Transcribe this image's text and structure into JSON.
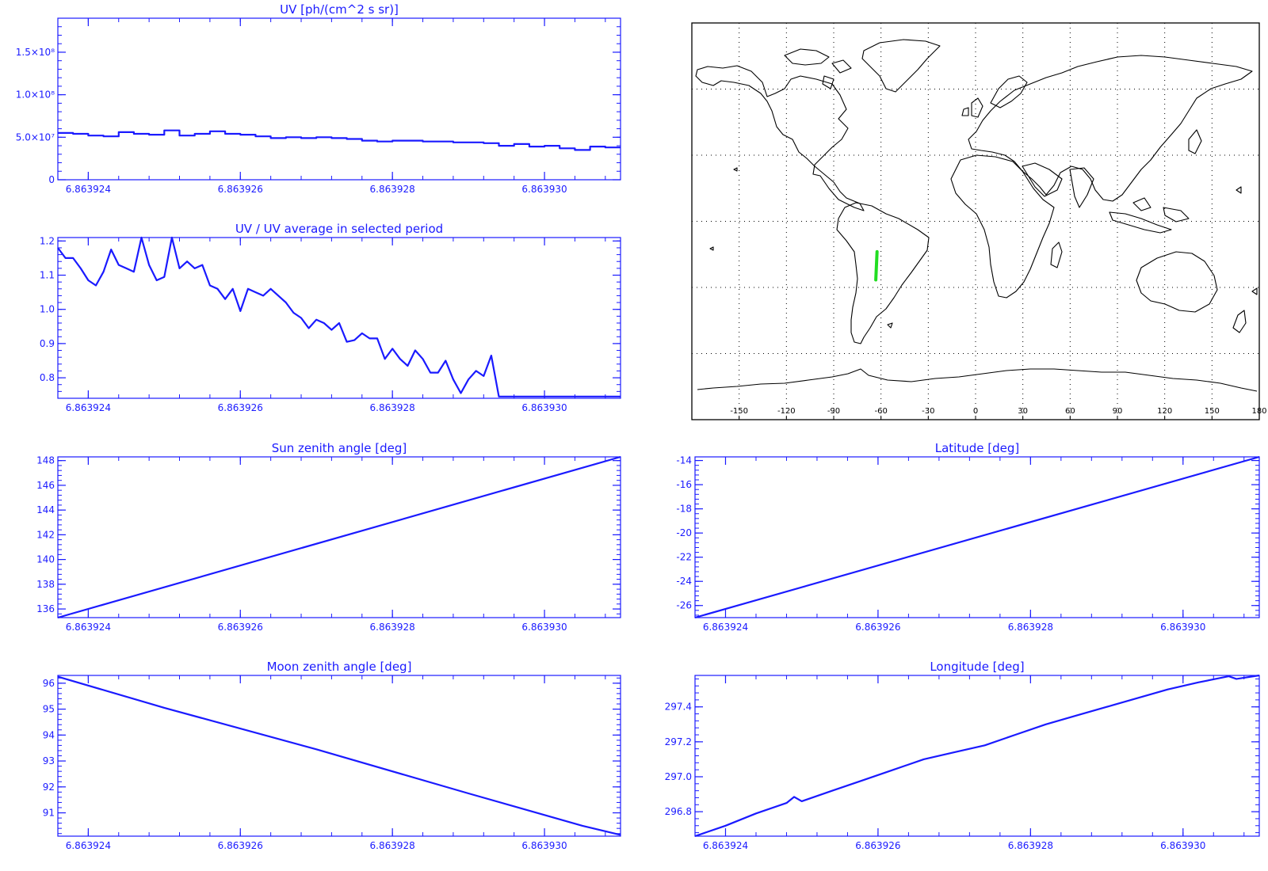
{
  "chart_data": [
    {
      "id": "uv",
      "type": "line",
      "step": true,
      "title": "UV [ph/(cm^2 s sr)]",
      "xlabel": "",
      "ylabel": "",
      "xlim": [
        6.8639236,
        6.863931
      ],
      "ylim": [
        0,
        190000000
      ],
      "xticks": [
        6.863924,
        6.863926,
        6.863928,
        6.86393
      ],
      "xtick_labels": [
        "6.863924",
        "6.863926",
        "6.863928",
        "6.863930"
      ],
      "yticks": [
        0,
        50000000,
        100000000,
        150000000
      ],
      "ytick_labels": [
        "0",
        "5.0×10⁷",
        "1.0×10⁸",
        "1.5×10⁸"
      ],
      "grid": false,
      "series": [
        {
          "color": "#1a1aff",
          "x": [
            6.8639236,
            6.8639238,
            6.863924,
            6.8639242,
            6.8639244,
            6.8639246,
            6.8639248,
            6.863925,
            6.8639252,
            6.8639254,
            6.8639256,
            6.8639258,
            6.863926,
            6.8639262,
            6.8639264,
            6.8639266,
            6.8639268,
            6.863927,
            6.8639272,
            6.8639274,
            6.8639276,
            6.8639278,
            6.863928,
            6.8639282,
            6.8639284,
            6.8639286,
            6.8639288,
            6.863929,
            6.8639292,
            6.8639294,
            6.8639296,
            6.8639298,
            6.86393,
            6.8639302,
            6.8639304,
            6.8639306,
            6.8639308
          ],
          "y": [
            55000000,
            54000000,
            52000000,
            51000000,
            56000000,
            54000000,
            53000000,
            58000000,
            52000000,
            54000000,
            57000000,
            54000000,
            53000000,
            51000000,
            49000000,
            50000000,
            49000000,
            50000000,
            49000000,
            48000000,
            46000000,
            45000000,
            46000000,
            46000000,
            45000000,
            45000000,
            44000000,
            44000000,
            43000000,
            40000000,
            42000000,
            39000000,
            40000000,
            37000000,
            35000000,
            39000000,
            38000000
          ]
        }
      ]
    },
    {
      "id": "ratio",
      "type": "line",
      "title": "UV / UV average in selected period",
      "xlabel": "",
      "ylabel": "",
      "xlim": [
        6.8639236,
        6.863931
      ],
      "ylim": [
        0.74,
        1.21
      ],
      "xticks": [
        6.863924,
        6.863926,
        6.863928,
        6.86393
      ],
      "xtick_labels": [
        "6.863924",
        "6.863926",
        "6.863928",
        "6.863930"
      ],
      "yticks": [
        0.8,
        0.9,
        1.0,
        1.1,
        1.2
      ],
      "ytick_labels": [
        "0.8",
        "0.9",
        "1.0",
        "1.1",
        "1.2"
      ],
      "grid": false,
      "series": [
        {
          "color": "#1a1aff",
          "x": [
            6.8639236,
            6.8639237,
            6.8639238,
            6.8639239,
            6.863924,
            6.8639241,
            6.8639242,
            6.8639243,
            6.8639244,
            6.8639245,
            6.8639246,
            6.8639247,
            6.8639248,
            6.8639249,
            6.863925,
            6.8639251,
            6.8639252,
            6.8639253,
            6.8639254,
            6.8639255,
            6.8639256,
            6.8639257,
            6.8639258,
            6.8639259,
            6.863926,
            6.8639261,
            6.8639262,
            6.8639263,
            6.8639264,
            6.8639265,
            6.8639266,
            6.8639267,
            6.8639268,
            6.8639269,
            6.863927,
            6.8639271,
            6.8639272,
            6.8639273,
            6.8639274,
            6.8639275,
            6.8639276,
            6.8639277,
            6.8639278,
            6.8639279,
            6.863928,
            6.8639281,
            6.8639282,
            6.8639283,
            6.8639284,
            6.8639285,
            6.8639286,
            6.8639287,
            6.8639288,
            6.8639289,
            6.863929,
            6.8639291,
            6.8639292,
            6.8639293,
            6.8639294,
            6.8639295,
            6.8639296,
            6.8639297,
            6.8639298,
            6.8639299,
            6.86393,
            6.8639301,
            6.8639302,
            6.8639303,
            6.8639304,
            6.8639305,
            6.8639306,
            6.8639307,
            6.8639308,
            6.8639309,
            6.863931
          ],
          "y": [
            1.18,
            1.15,
            1.15,
            1.12,
            1.085,
            1.07,
            1.11,
            1.175,
            1.13,
            1.12,
            1.11,
            1.21,
            1.13,
            1.085,
            1.095,
            1.21,
            1.12,
            1.14,
            1.12,
            1.13,
            1.07,
            1.06,
            1.03,
            1.06,
            0.995,
            1.06,
            1.05,
            1.04,
            1.06,
            1.04,
            1.02,
            0.99,
            0.975,
            0.945,
            0.97,
            0.96,
            0.94,
            0.96,
            0.905,
            0.91,
            0.93,
            0.915,
            0.915,
            0.855,
            0.885,
            0.855,
            0.835,
            0.88,
            0.855,
            0.815,
            0.815,
            0.85,
            0.795,
            0.755,
            0.795,
            0.82,
            0.805,
            0.865,
            0.745,
            0.745,
            0.745,
            0.745,
            0.745,
            0.745,
            0.745,
            0.745,
            0.745,
            0.745,
            0.745,
            0.745,
            0.745,
            0.745,
            0.745,
            0.745,
            0.745
          ]
        }
      ]
    },
    {
      "id": "map",
      "type": "scatter",
      "title": "",
      "xlim": [
        -180,
        180
      ],
      "ylim": [
        -90,
        90
      ],
      "xticks": [
        -150,
        -120,
        -90,
        -60,
        -30,
        0,
        30,
        60,
        90,
        120,
        150,
        180
      ],
      "xtick_labels": [
        "-150",
        "-120",
        "-90",
        "-60",
        "-30",
        "0",
        "30",
        "60",
        "90",
        "120",
        "150",
        "180"
      ],
      "grid": true,
      "track_color": "#22dd22",
      "series": [
        {
          "color": "#22dd22",
          "x": [
            -63.3,
            -62.5
          ],
          "y": [
            -26.6,
            -13.8
          ]
        }
      ]
    },
    {
      "id": "sun",
      "type": "line",
      "title": "Sun zenith angle [deg]",
      "xlabel": "",
      "ylabel": "",
      "xlim": [
        6.8639236,
        6.863931
      ],
      "ylim": [
        135.3,
        148.3
      ],
      "xticks": [
        6.863924,
        6.863926,
        6.863928,
        6.86393
      ],
      "xtick_labels": [
        "6.863924",
        "6.863926",
        "6.863928",
        "6.863930"
      ],
      "yticks": [
        136,
        138,
        140,
        142,
        144,
        146,
        148
      ],
      "ytick_labels": [
        "136",
        "138",
        "140",
        "142",
        "144",
        "146",
        "148"
      ],
      "grid": false,
      "series": [
        {
          "color": "#1a1aff",
          "x": [
            6.8639236,
            6.863931
          ],
          "y": [
            135.3,
            148.3
          ]
        }
      ]
    },
    {
      "id": "lat",
      "type": "line",
      "title": "Latitude [deg]",
      "xlabel": "",
      "ylabel": "",
      "xlim": [
        6.8639236,
        6.863931
      ],
      "ylim": [
        -27.0,
        -13.7
      ],
      "xticks": [
        6.863924,
        6.863926,
        6.863928,
        6.86393
      ],
      "xtick_labels": [
        "6.863924",
        "6.863926",
        "6.863928",
        "6.863930"
      ],
      "yticks": [
        -26,
        -24,
        -22,
        -20,
        -18,
        -16,
        -14
      ],
      "ytick_labels": [
        "-26",
        "-24",
        "-22",
        "-20",
        "-18",
        "-16",
        "-14"
      ],
      "grid": false,
      "series": [
        {
          "color": "#1a1aff",
          "x": [
            6.8639236,
            6.863931
          ],
          "y": [
            -27.0,
            -13.7
          ]
        }
      ]
    },
    {
      "id": "moon",
      "type": "line",
      "title": "Moon zenith angle [deg]",
      "xlabel": "",
      "ylabel": "",
      "xlim": [
        6.8639236,
        6.863931
      ],
      "ylim": [
        90.1,
        96.3
      ],
      "xticks": [
        6.863924,
        6.863926,
        6.863928,
        6.86393
      ],
      "xtick_labels": [
        "6.863924",
        "6.863926",
        "6.863928",
        "6.863930"
      ],
      "yticks": [
        91,
        92,
        93,
        94,
        95,
        96
      ],
      "ytick_labels": [
        "91",
        "92",
        "93",
        "94",
        "95",
        "96"
      ],
      "grid": false,
      "series": [
        {
          "color": "#1a1aff",
          "x": [
            6.8639236,
            6.863925,
            6.863927,
            6.863929,
            6.8639305,
            6.863931
          ],
          "y": [
            96.25,
            95.05,
            93.45,
            91.75,
            90.5,
            90.15
          ]
        }
      ]
    },
    {
      "id": "lon",
      "type": "line",
      "title": "Longitude [deg]",
      "xlabel": "",
      "ylabel": "",
      "xlim": [
        6.8639236,
        6.863931
      ],
      "ylim": [
        296.66,
        297.58
      ],
      "xticks": [
        6.863924,
        6.863926,
        6.863928,
        6.86393
      ],
      "xtick_labels": [
        "6.863924",
        "6.863926",
        "6.863928",
        "6.863930"
      ],
      "yticks": [
        296.8,
        297.0,
        297.2,
        297.4
      ],
      "ytick_labels": [
        "296.8",
        "297.0",
        "297.2",
        "297.4"
      ],
      "grid": false,
      "series": [
        {
          "color": "#1a1aff",
          "x": [
            6.8639236,
            6.863924,
            6.8639244,
            6.8639248,
            6.8639249,
            6.863925,
            6.8639254,
            6.8639258,
            6.8639262,
            6.8639266,
            6.863927,
            6.8639274,
            6.8639278,
            6.8639282,
            6.8639286,
            6.863929,
            6.8639294,
            6.8639298,
            6.8639302,
            6.8639306,
            6.8639307,
            6.863931
          ],
          "y": [
            296.66,
            296.72,
            296.79,
            296.85,
            296.885,
            296.86,
            296.92,
            296.98,
            297.04,
            297.1,
            297.14,
            297.18,
            297.24,
            297.3,
            297.35,
            297.4,
            297.45,
            297.5,
            297.54,
            297.575,
            297.56,
            297.58
          ]
        }
      ]
    }
  ]
}
